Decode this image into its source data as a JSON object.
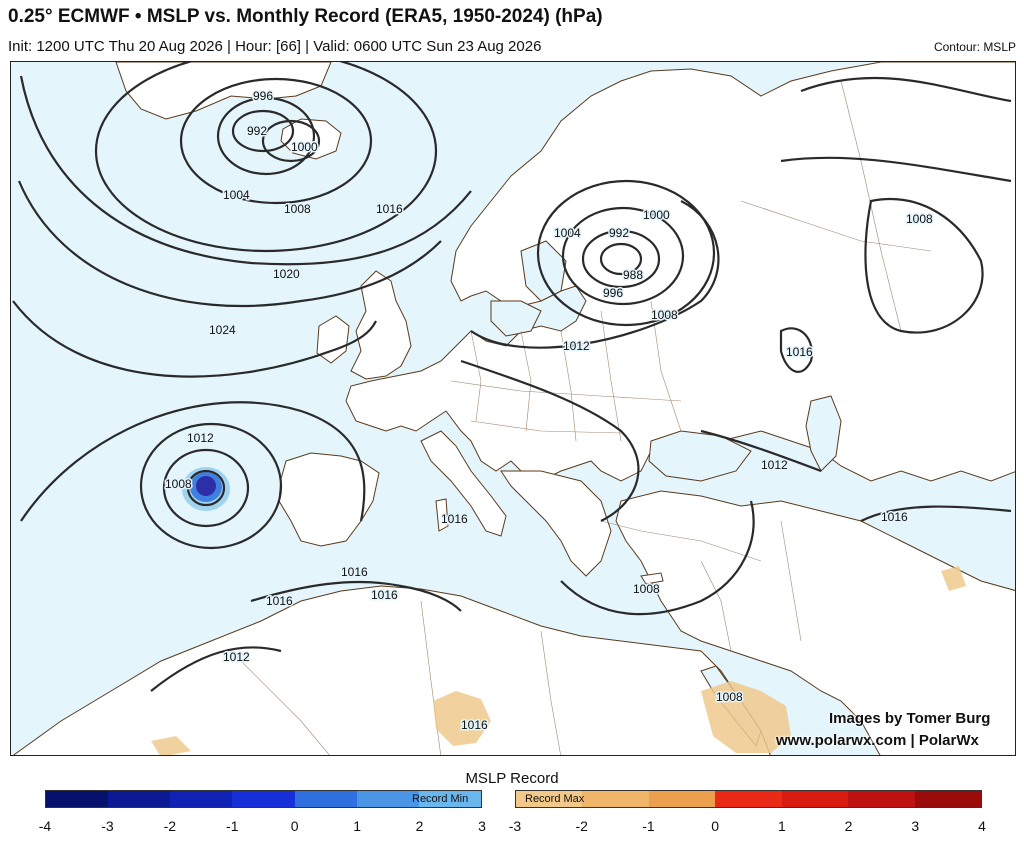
{
  "header": {
    "title": "0.25° ECMWF • MSLP vs. Monthly Record (ERA5, 1950-2024) (hPa)",
    "subtitle": "Init: 1200 UTC Thu 20 Aug 2026 | Hour: [66] | Valid: 0600 UTC Sun 23 Aug 2026",
    "contour_note": "Contour: MSLP"
  },
  "credit": {
    "line1": "Images by Tomer Burg",
    "line2": "www.polarwx.com | PolarWx"
  },
  "contour_labels": [
    "996",
    "992",
    "1000",
    "1004",
    "1008",
    "1016",
    "1020",
    "1024",
    "1012",
    "1008",
    "992",
    "1000",
    "988",
    "996",
    "1004",
    "1008",
    "1012",
    "1016",
    "1008",
    "1012",
    "1016",
    "1016",
    "1016",
    "1016",
    "1012",
    "1016",
    "1008",
    "1008",
    "1016"
  ],
  "colorbar": {
    "title": "MSLP Record",
    "min_label": "Record Min",
    "max_label": "Record Max",
    "min_ticks": [
      "-4",
      "-3",
      "-2",
      "-1",
      "0",
      "1",
      "2",
      "3"
    ],
    "max_ticks": [
      "-3",
      "-2",
      "-1",
      "0",
      "1",
      "2",
      "3",
      "4"
    ],
    "min_colors": [
      "#08106e",
      "#0b1a94",
      "#0f22b4",
      "#1530d8",
      "#2f6fe0",
      "#4a95e6",
      "#6ab7ee"
    ],
    "max_colors": [
      "#f3c98a",
      "#efb66a",
      "#ec9f4c",
      "#ea2a14",
      "#d91a10",
      "#be1210",
      "#9a0c0c"
    ]
  },
  "colors": {
    "ocean_fill": "#e4f5fc",
    "coast": "#5a3a1c",
    "contour": "#2a2a2a",
    "low_core": "#2d2fa8"
  }
}
